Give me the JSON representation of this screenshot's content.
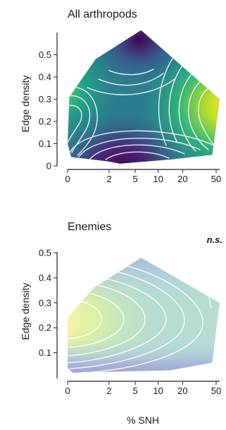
{
  "chart_data": [
    {
      "type": "contour",
      "title": "All arthropods",
      "xlabel": "",
      "ylabel": "Edge density",
      "xscale": "log1p",
      "x_ticks": [
        0,
        2,
        5,
        10,
        20,
        50
      ],
      "x_tick_labels": [
        "0",
        "2",
        "5",
        "10",
        "20",
        "50"
      ],
      "y_ticks": [
        0,
        0.1,
        0.2,
        0.3,
        0.4,
        0.5
      ],
      "y_tick_labels": [
        "0",
        "0.1",
        "0.2",
        "0.3",
        "0.4",
        "0.5"
      ],
      "xlim": [
        0,
        55
      ],
      "ylim": [
        0,
        0.6
      ],
      "hull": [
        [
          2,
          0.02
        ],
        [
          3,
          0.01
        ],
        [
          15,
          0.03
        ],
        [
          45,
          0.05
        ],
        [
          55,
          0.3
        ],
        [
          6,
          0.61
        ],
        [
          1.1,
          0.48
        ],
        [
          0.05,
          0.31
        ],
        [
          0,
          0.1
        ],
        [
          0.1,
          0.04
        ]
      ],
      "colormap": "viridis",
      "annotation": ""
    },
    {
      "type": "contour",
      "title": "Enemies",
      "xlabel": "% SNH",
      "ylabel": "Edge density",
      "xscale": "log1p",
      "x_ticks": [
        0,
        2,
        5,
        10,
        20,
        50
      ],
      "x_tick_labels": [
        "0",
        "2",
        "5",
        "10",
        "20",
        "50"
      ],
      "y_ticks": [
        0.1,
        0.2,
        0.3,
        0.4,
        0.5
      ],
      "y_tick_labels": [
        "0.1",
        "0.2",
        "0.3",
        "0.4",
        "0.5"
      ],
      "xlim": [
        0,
        55
      ],
      "ylim": [
        0,
        0.5
      ],
      "hull": [
        [
          0.15,
          0.02
        ],
        [
          14,
          0.03
        ],
        [
          45,
          0.06
        ],
        [
          55,
          0.3
        ],
        [
          6,
          0.48
        ],
        [
          1.0,
          0.36
        ],
        [
          0,
          0.24
        ],
        [
          0,
          0.04
        ]
      ],
      "colormap": "viridis-light",
      "annotation": "n.s."
    }
  ],
  "colors": {
    "panel_a_palette": "viridis",
    "panel_b_palette": "pale viridis"
  }
}
